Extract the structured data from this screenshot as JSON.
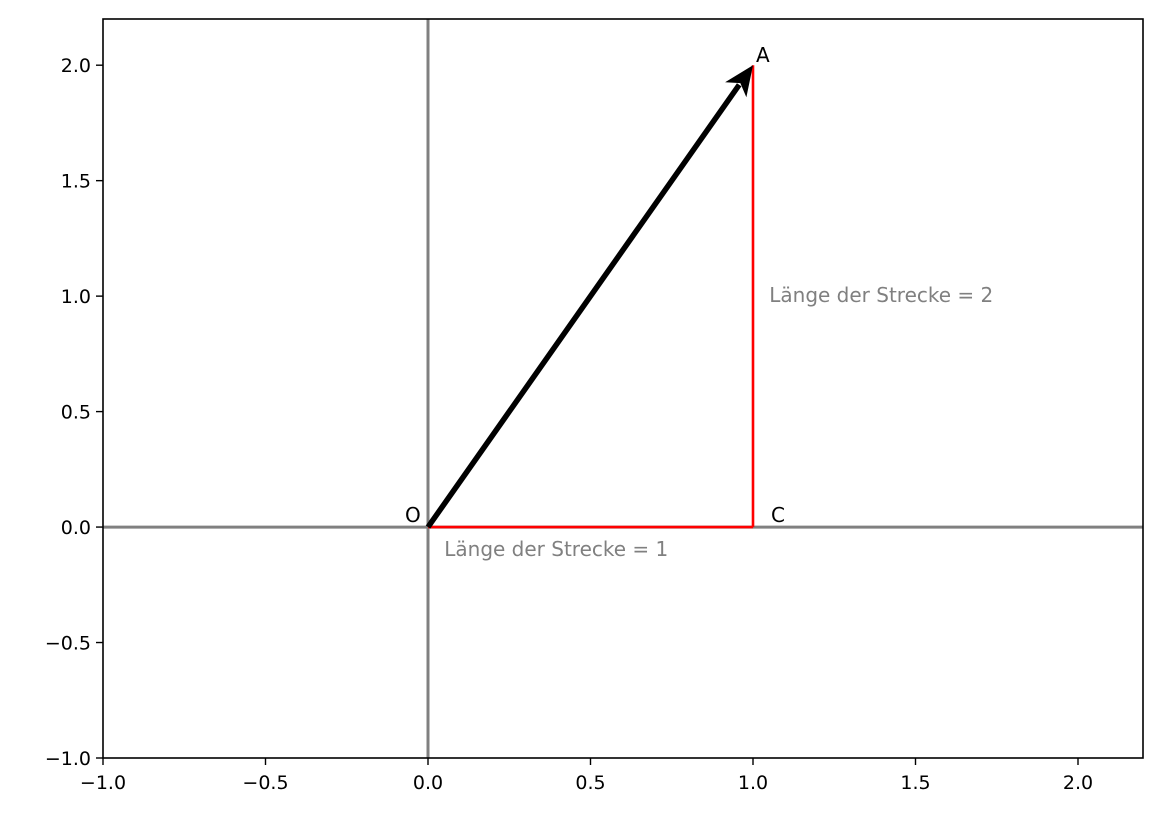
{
  "chart_data": {
    "type": "line",
    "title": "",
    "xlabel": "",
    "ylabel": "",
    "xlim": [
      -1.0,
      2.2
    ],
    "ylim": [
      -1.0,
      2.2
    ],
    "grid": false,
    "x_ticks": [
      "−1.0",
      "−0.5",
      "0.0",
      "0.5",
      "1.0",
      "1.5",
      "2.0"
    ],
    "x_tick_values": [
      -1.0,
      -0.5,
      0.0,
      0.5,
      1.0,
      1.5,
      2.0
    ],
    "y_ticks": [
      "−1.0",
      "−0.5",
      "0.0",
      "0.5",
      "1.0",
      "1.5",
      "2.0"
    ],
    "y_tick_values": [
      -1.0,
      -0.5,
      0.0,
      0.5,
      1.0,
      1.5,
      2.0
    ],
    "axis_lines": {
      "x": 0,
      "y": 0,
      "color": "#808080"
    },
    "vector": {
      "from": [
        0,
        0
      ],
      "to": [
        1,
        2
      ],
      "color": "#000000"
    },
    "segments": [
      {
        "from": [
          0,
          0
        ],
        "to": [
          1,
          0
        ],
        "color": "#ff0000"
      },
      {
        "from": [
          1,
          0
        ],
        "to": [
          1,
          2
        ],
        "color": "#ff0000"
      }
    ],
    "points": [
      {
        "label": "O",
        "x": 0,
        "y": 0
      },
      {
        "label": "A",
        "x": 1,
        "y": 2
      },
      {
        "label": "C",
        "x": 1,
        "y": 0
      }
    ],
    "annotations": [
      {
        "text": "Länge der Strecke = 1",
        "x": 0.05,
        "y": -0.1,
        "color": "#808080"
      },
      {
        "text": "Länge der Strecke = 2",
        "x": 1.05,
        "y": 1.0,
        "color": "#808080"
      }
    ]
  }
}
